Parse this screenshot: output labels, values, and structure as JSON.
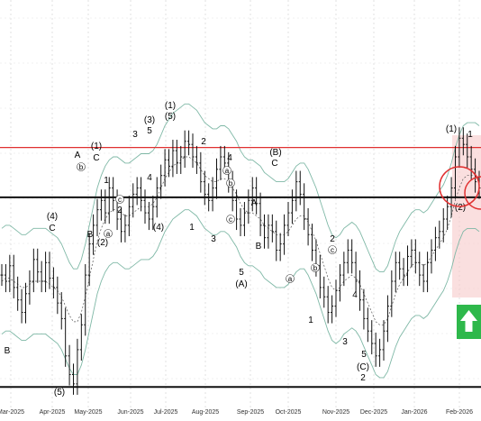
{
  "chart_data": {
    "type": "line",
    "title": "",
    "xlabel": "",
    "ylabel": "",
    "grid": true,
    "x_ticks": [
      "Mar-2025",
      "Apr-2025",
      "May-2025",
      "Jun-2025",
      "Jul-2025",
      "Aug-2025",
      "Sep-2025",
      "Oct-2025",
      "Nov-2025",
      "Dec-2025",
      "Jan-2026",
      "Feb-2026"
    ],
    "horizontal_levels": [
      {
        "name": "resistance",
        "color": "#e03030",
        "value": 0.83
      },
      {
        "name": "support-upper",
        "color": "#111111",
        "value": 0.67
      },
      {
        "name": "support-lower",
        "color": "#111111",
        "value": 0.06
      }
    ],
    "series": [
      {
        "values": [
          0.42,
          0.4,
          0.45,
          0.38,
          0.34,
          0.3,
          0.36,
          0.4,
          0.47,
          0.43,
          0.4,
          0.46,
          0.41,
          0.38,
          0.33,
          0.28,
          0.16,
          0.1,
          0.07,
          0.18,
          0.26,
          0.42,
          0.52,
          0.58,
          0.63,
          0.66,
          0.62,
          0.7,
          0.66,
          0.6,
          0.56,
          0.58,
          0.64,
          0.68,
          0.7,
          0.66,
          0.62,
          0.6,
          0.64,
          0.7,
          0.74,
          0.79,
          0.77,
          0.82,
          0.78,
          0.8,
          0.85,
          0.84,
          0.8,
          0.78,
          0.72,
          0.68,
          0.66,
          0.7,
          0.76,
          0.8,
          0.78,
          0.72,
          0.66,
          0.6,
          0.58,
          0.62,
          0.66,
          0.7,
          0.65,
          0.58,
          0.54,
          0.58,
          0.56,
          0.5,
          0.52,
          0.58,
          0.62,
          0.66,
          0.72,
          0.68,
          0.6,
          0.55,
          0.5,
          0.45,
          0.38,
          0.35,
          0.3,
          0.32,
          0.37,
          0.42,
          0.46,
          0.5,
          0.46,
          0.4,
          0.34,
          0.28,
          0.24,
          0.2,
          0.16,
          0.18,
          0.24,
          0.32,
          0.4,
          0.46,
          0.44,
          0.42,
          0.48,
          0.5,
          0.46,
          0.42,
          0.4,
          0.46,
          0.5,
          0.54,
          0.56,
          0.6,
          0.64,
          0.7,
          0.8,
          0.86,
          0.84,
          0.8,
          0.76,
          0.72,
          0.7
        ]
      },
      {
        "values": [
          0.4,
          0.41,
          0.41,
          0.4,
          0.39,
          0.38,
          0.38,
          0.39,
          0.4,
          0.4,
          0.4,
          0.4,
          0.39,
          0.38,
          0.37,
          0.35,
          0.32,
          0.29,
          0.27,
          0.27,
          0.3,
          0.35,
          0.41,
          0.47,
          0.53,
          0.57,
          0.6,
          0.62,
          0.63,
          0.63,
          0.62,
          0.61,
          0.61,
          0.62,
          0.63,
          0.64,
          0.64,
          0.64,
          0.65,
          0.67,
          0.7,
          0.73,
          0.75,
          0.77,
          0.78,
          0.79,
          0.8,
          0.8,
          0.79,
          0.78,
          0.76,
          0.74,
          0.73,
          0.72,
          0.72,
          0.73,
          0.73,
          0.72,
          0.7,
          0.68,
          0.65,
          0.63,
          0.62,
          0.62,
          0.61,
          0.6,
          0.58,
          0.57,
          0.56,
          0.55,
          0.55,
          0.55,
          0.56,
          0.58,
          0.6,
          0.61,
          0.61,
          0.59,
          0.56,
          0.53,
          0.49,
          0.45,
          0.41,
          0.38,
          0.37,
          0.38,
          0.4,
          0.41,
          0.42,
          0.41,
          0.39,
          0.36,
          0.33,
          0.3,
          0.27,
          0.26,
          0.26,
          0.28,
          0.32,
          0.36,
          0.39,
          0.41,
          0.43,
          0.45,
          0.46,
          0.46,
          0.45,
          0.46,
          0.48,
          0.5,
          0.52,
          0.54,
          0.57,
          0.61,
          0.66,
          0.7,
          0.73,
          0.74,
          0.74,
          0.74,
          0.73
        ]
      }
    ],
    "wave_labels": [
      "B",
      "(4)",
      "C",
      "(5)",
      "A",
      "(1)",
      "C",
      "1",
      "B",
      "(2)",
      "a",
      "b",
      "c",
      "2",
      "3",
      "(3)",
      "5",
      "4",
      "(4)",
      "(1)",
      "(5)",
      "2",
      "1",
      "3",
      "4",
      "a",
      "b",
      "c",
      "A",
      "B",
      "(B)",
      "C",
      "5",
      "(A)",
      "a",
      "b",
      "c",
      "1",
      "2",
      "3",
      "4",
      "5",
      "(C)",
      "2",
      "(1)",
      "(2)",
      "1"
    ],
    "buy_signal": "up-arrow"
  }
}
